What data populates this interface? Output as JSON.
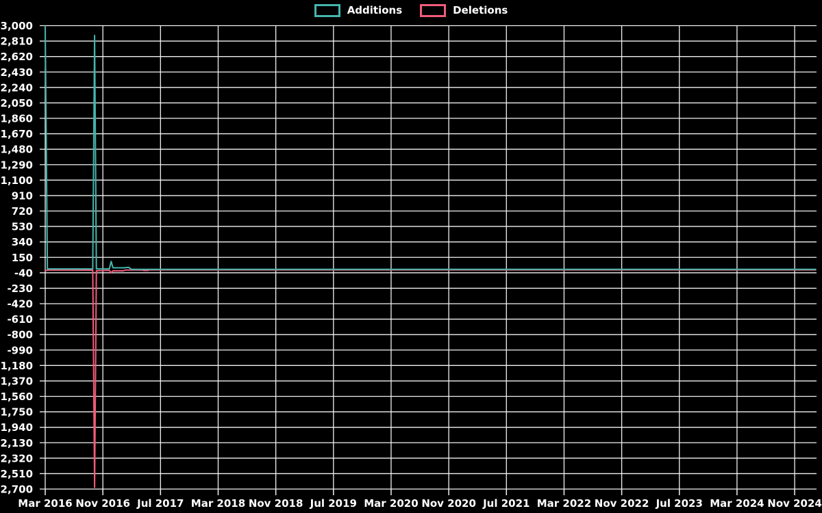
{
  "legend": {
    "items": [
      {
        "label": "Additions",
        "color": "#45b6ae"
      },
      {
        "label": "Deletions",
        "color": "#f25c7a"
      }
    ]
  },
  "chart_data": {
    "type": "line",
    "title": "",
    "xlabel": "",
    "ylabel": "",
    "background_color": "#000000",
    "grid": true,
    "grid_color": "#f2f2f2",
    "text_color": "#ffffff",
    "legend_position": "top-center",
    "x_axis": {
      "unit": "months since Mar 2016",
      "tick_interval_months": 8,
      "tick_labels": [
        "Mar 2016",
        "Nov 2016",
        "Jul 2017",
        "Mar 2018",
        "Nov 2018",
        "Jul 2019",
        "Mar 2020",
        "Nov 2020",
        "Jul 2021",
        "Mar 2022",
        "Nov 2022",
        "Jul 2023",
        "Mar 2024",
        "Nov 2024"
      ]
    },
    "y_axis": {
      "min": -2700,
      "max": 3000,
      "tick_step": 190,
      "tick_values": [
        3000,
        2810,
        2620,
        2430,
        2240,
        2050,
        1860,
        1670,
        1480,
        1290,
        1100,
        910,
        720,
        530,
        340,
        150,
        -40,
        -230,
        -420,
        -610,
        -800,
        -990,
        -1180,
        -1370,
        -1560,
        -1750,
        -1940,
        -2130,
        -2320,
        -2510,
        -2700
      ]
    },
    "series": [
      {
        "name": "Additions",
        "color": "#45b6ae",
        "points": [
          [
            0,
            3000
          ],
          [
            0.3,
            8
          ],
          [
            6.6,
            8
          ],
          [
            6.85,
            2880
          ],
          [
            7.1,
            8
          ],
          [
            8.9,
            8
          ],
          [
            9.15,
            100
          ],
          [
            9.4,
            22
          ],
          [
            11.0,
            22
          ],
          [
            11.3,
            26
          ],
          [
            11.6,
            26
          ],
          [
            12.0,
            2
          ],
          [
            107,
            2
          ]
        ]
      },
      {
        "name": "Deletions",
        "color": "#f25c7a",
        "points": [
          [
            0,
            -18
          ],
          [
            0.3,
            -5
          ],
          [
            6.6,
            -8
          ],
          [
            6.85,
            -2680
          ],
          [
            7.1,
            -15
          ],
          [
            8.9,
            -10
          ],
          [
            9.15,
            -40
          ],
          [
            9.4,
            -16
          ],
          [
            10.8,
            -16
          ],
          [
            11.2,
            -5
          ],
          [
            13.4,
            -5
          ],
          [
            13.7,
            -12
          ],
          [
            14.2,
            -12
          ],
          [
            14.5,
            -4
          ],
          [
            107,
            -4
          ]
        ]
      }
    ]
  }
}
